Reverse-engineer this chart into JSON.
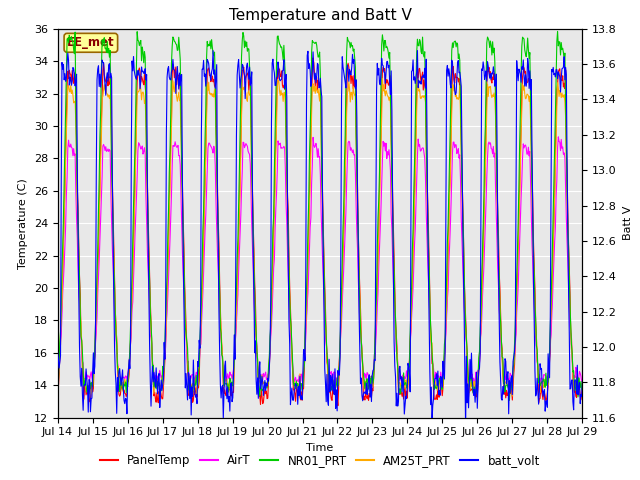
{
  "title": "Temperature and Batt V",
  "xlabel": "Time",
  "ylabel_left": "Temperature (C)",
  "ylabel_right": "Batt V",
  "ylim_left": [
    12,
    36
  ],
  "ylim_right": [
    11.6,
    13.8
  ],
  "yticks_left": [
    12,
    14,
    16,
    18,
    20,
    22,
    24,
    26,
    28,
    30,
    32,
    34,
    36
  ],
  "yticks_right": [
    11.6,
    11.8,
    12.0,
    12.2,
    12.4,
    12.6,
    12.8,
    13.0,
    13.2,
    13.4,
    13.6,
    13.8
  ],
  "xtick_labels": [
    "Jul 14",
    "Jul 15",
    "Jul 16",
    "Jul 17",
    "Jul 18",
    "Jul 19",
    "Jul 20",
    "Jul 21",
    "Jul 22",
    "Jul 23",
    "Jul 24",
    "Jul 25",
    "Jul 26",
    "Jul 27",
    "Jul 28",
    "Jul 29"
  ],
  "legend_labels": [
    "PanelTemp",
    "AirT",
    "NR01_PRT",
    "AM25T_PRT",
    "batt_volt"
  ],
  "legend_colors": [
    "#ff0000",
    "#ff00ff",
    "#00cc00",
    "#ffaa00",
    "#0000ff"
  ],
  "annotation_text": "EE_met",
  "annotation_color": "#880000",
  "annotation_bg": "#ffff99",
  "annotation_border": "#996600",
  "bg_color": "#e8e8e8",
  "grid_color": "#ffffff",
  "title_fontsize": 11,
  "axis_fontsize": 8,
  "tick_fontsize": 8,
  "legend_fontsize": 8.5
}
